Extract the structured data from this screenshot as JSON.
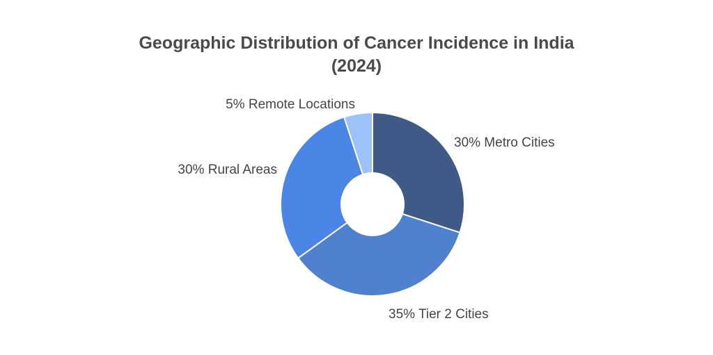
{
  "chart_data": {
    "type": "pie",
    "variant": "donut",
    "title_lines": [
      "Geographic Distribution of Cancer Incidence in India",
      "(2024)"
    ],
    "categories": [
      "Metro Cities",
      "Tier 2 Cities",
      "Rural Areas",
      "Remote Locations"
    ],
    "values": [
      30,
      35,
      30,
      5
    ],
    "unit": "%",
    "labels": [
      "30% Metro Cities",
      "35% Tier 2 Cities",
      "30% Rural Areas",
      "5% Remote Locations"
    ],
    "colors": [
      "#3f5a86",
      "#5081cf",
      "#4a86e6",
      "#9dc1f9"
    ],
    "legend": "none",
    "grid": false
  }
}
